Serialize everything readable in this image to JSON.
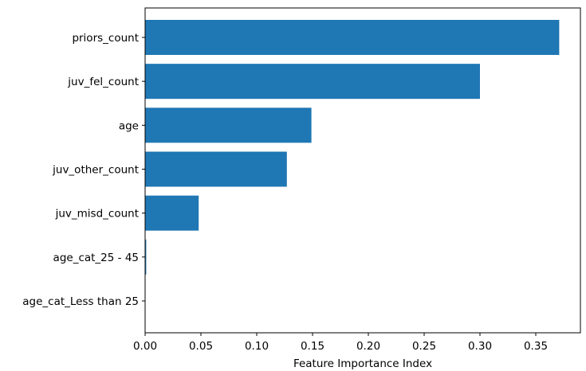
{
  "chart_data": {
    "type": "bar",
    "orientation": "horizontal",
    "title": "",
    "xlabel": "Feature Importance Index",
    "ylabel": "",
    "categories": [
      "priors_count",
      "juv_fel_count",
      "age",
      "juv_other_count",
      "juv_misd_count",
      "age_cat_25 - 45",
      "age_cat_Less than 25"
    ],
    "values": [
      0.371,
      0.3,
      0.149,
      0.127,
      0.048,
      0.001,
      0.0
    ],
    "xlim": [
      0.0,
      0.39
    ],
    "xticks": [
      0.0,
      0.05,
      0.1,
      0.15,
      0.2,
      0.25,
      0.3,
      0.35
    ],
    "xtick_labels": [
      "0.00",
      "0.05",
      "0.10",
      "0.15",
      "0.20",
      "0.25",
      "0.30",
      "0.35"
    ],
    "bar_color": "#1f77b4",
    "grid": false,
    "legend": "none"
  }
}
